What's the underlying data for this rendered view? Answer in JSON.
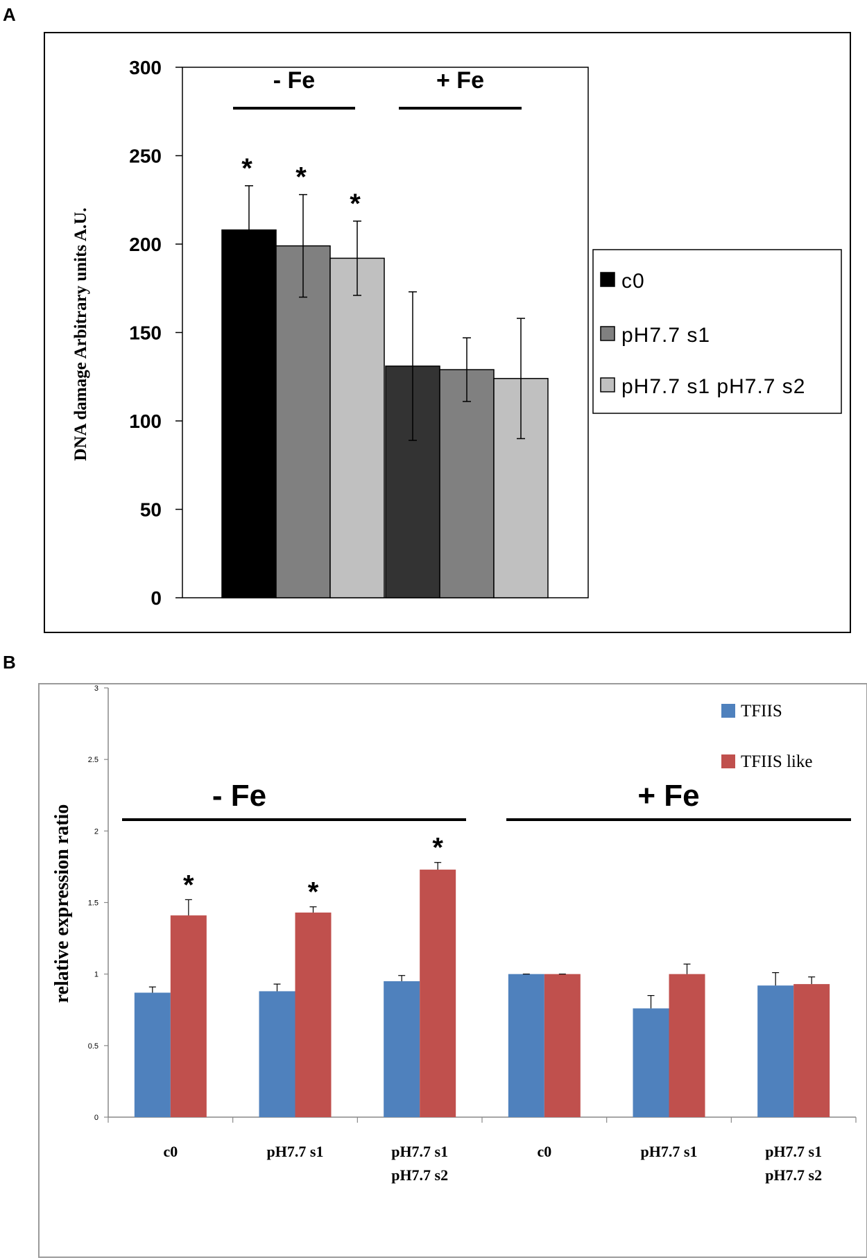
{
  "chart_data": [
    {
      "panel": "A",
      "type": "bar",
      "ylabel": "DNA damage Arbitrary units A.U.",
      "ylim": [
        0,
        300
      ],
      "yticks": [
        0,
        50,
        100,
        150,
        200,
        250,
        300
      ],
      "groups": [
        "- Fe",
        "+ Fe"
      ],
      "legend": [
        "c0",
        "pH7.7 s1",
        "pH7.7 s1 pH7.7 s2"
      ],
      "bars": [
        {
          "group": "- Fe",
          "series": "c0",
          "value": 208,
          "err": 25,
          "sig": "*",
          "color": "#000000"
        },
        {
          "group": "- Fe",
          "series": "pH7.7 s1",
          "value": 199,
          "err": 29,
          "sig": "*",
          "color": "#808080"
        },
        {
          "group": "- Fe",
          "series": "pH7.7 s1 pH7.7 s2",
          "value": 192,
          "err": 21,
          "sig": "*",
          "color": "#c0c0c0"
        },
        {
          "group": "+ Fe",
          "series": "c0",
          "value": 131,
          "err": 42,
          "sig": "",
          "color": "#333333"
        },
        {
          "group": "+ Fe",
          "series": "pH7.7 s1",
          "value": 129,
          "err": 18,
          "sig": "",
          "color": "#808080"
        },
        {
          "group": "+ Fe",
          "series": "pH7.7 s1 pH7.7 s2",
          "value": 124,
          "err": 34,
          "sig": "",
          "color": "#c0c0c0"
        }
      ],
      "legend_colors": [
        "#000000",
        "#808080",
        "#c0c0c0"
      ]
    },
    {
      "panel": "B",
      "type": "bar",
      "ylabel": "relative expression ratio",
      "ylim": [
        0,
        3
      ],
      "yticks": [
        "0",
        "0.5",
        "1",
        "1.5",
        "2",
        "2.5",
        "3"
      ],
      "groups": [
        "- Fe",
        "+ Fe"
      ],
      "categories": [
        "c0",
        "pH7.7 s1",
        "pH7.7 s1 pH7.7 s2",
        "c0",
        "pH7.7 s1",
        "pH7.7 s1 pH7.7 s2"
      ],
      "category_lines": [
        [
          "c0"
        ],
        [
          "pH7.7 s1"
        ],
        [
          "pH7.7 s1",
          "pH7.7 s2"
        ],
        [
          "c0"
        ],
        [
          "pH7.7 s1"
        ],
        [
          "pH7.7 s1",
          "pH7.7 s2"
        ]
      ],
      "series": [
        {
          "name": "TFIIS",
          "color": "#4f81bd",
          "values": [
            0.87,
            0.88,
            0.95,
            1.0,
            0.76,
            0.92
          ],
          "err": [
            0.04,
            0.05,
            0.04,
            0.0,
            0.09,
            0.09
          ]
        },
        {
          "name": "TFIIS like",
          "color": "#c0504d",
          "values": [
            1.41,
            1.43,
            1.73,
            1.0,
            1.0,
            0.93
          ],
          "err": [
            0.11,
            0.04,
            0.05,
            0.0,
            0.07,
            0.05
          ]
        }
      ],
      "significance": [
        "*",
        "*",
        "*",
        "",
        "",
        ""
      ]
    }
  ],
  "panel_labels": [
    "A",
    "B"
  ]
}
